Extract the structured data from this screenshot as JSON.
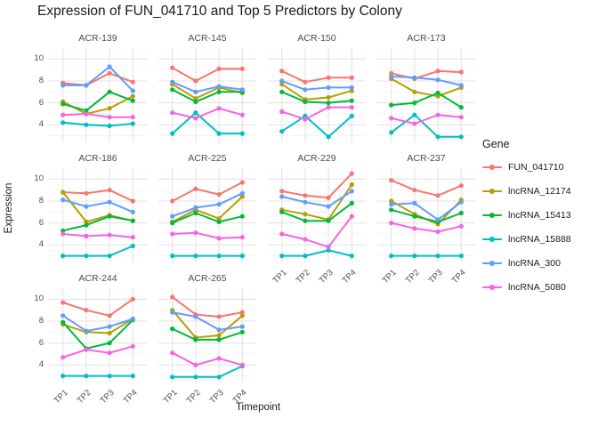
{
  "title": "Expression of FUN_041710 and Top 5 Predictors by Colony",
  "chart_data": {
    "type": "line",
    "title": "Expression of FUN_041710 and Top 5 Predictors by Colony",
    "xlabel": "Timepoint",
    "ylabel": "Expression",
    "x": [
      "TP1",
      "TP2",
      "TP3",
      "TP4"
    ],
    "yticks": [
      4,
      6,
      8,
      10
    ],
    "ylim": [
      2.4,
      11.0
    ],
    "grid": true,
    "legend_title": "Gene",
    "legend_position": "right",
    "series_names": [
      "FUN_041710",
      "lncRNA_12174",
      "lncRNA_15413",
      "lncRNA_15888",
      "lncRNA_300",
      "lncRNA_5080"
    ],
    "series_colors": {
      "FUN_041710": "#F8766D",
      "lncRNA_12174": "#B79F00",
      "lncRNA_15413": "#00BA38",
      "lncRNA_15888": "#00BFC4",
      "lncRNA_300": "#619CFF",
      "lncRNA_5080": "#F564E3"
    },
    "facets": [
      {
        "name": "ACR-139",
        "x_axis": false,
        "series": {
          "FUN_041710": [
            7.8,
            7.6,
            8.7,
            7.9
          ],
          "lncRNA_12174": [
            6.1,
            5.0,
            5.5,
            6.6
          ],
          "lncRNA_15413": [
            5.9,
            5.3,
            7.0,
            6.2
          ],
          "lncRNA_15888": [
            4.2,
            4.0,
            3.9,
            4.1
          ],
          "lncRNA_300": [
            7.6,
            7.6,
            9.3,
            7.1
          ],
          "lncRNA_5080": [
            4.9,
            5.0,
            4.7,
            4.7
          ]
        }
      },
      {
        "name": "ACR-145",
        "x_axis": false,
        "series": {
          "FUN_041710": [
            9.2,
            8.0,
            9.1,
            9.1
          ],
          "lncRNA_12174": [
            7.7,
            6.4,
            7.4,
            6.9
          ],
          "lncRNA_15413": [
            7.2,
            6.1,
            7.0,
            7.0
          ],
          "lncRNA_15888": [
            3.2,
            5.1,
            3.2,
            3.2
          ],
          "lncRNA_300": [
            7.9,
            7.0,
            7.5,
            7.2
          ],
          "lncRNA_5080": [
            5.1,
            4.6,
            5.5,
            4.9
          ]
        }
      },
      {
        "name": "ACR-150",
        "x_axis": false,
        "series": {
          "FUN_041710": [
            8.9,
            7.9,
            8.3,
            8.3
          ],
          "lncRNA_12174": [
            7.7,
            6.3,
            6.5,
            7.1
          ],
          "lncRNA_15413": [
            7.0,
            6.1,
            6.0,
            6.2
          ],
          "lncRNA_15888": [
            3.4,
            4.8,
            2.9,
            4.8
          ],
          "lncRNA_300": [
            8.0,
            7.2,
            7.4,
            7.4
          ],
          "lncRNA_5080": [
            5.2,
            4.5,
            5.6,
            5.6
          ]
        }
      },
      {
        "name": "ACR-173",
        "x_axis": false,
        "series": {
          "FUN_041710": [
            8.7,
            8.2,
            8.9,
            8.8
          ],
          "lncRNA_12174": [
            8.2,
            7.0,
            6.6,
            7.4
          ],
          "lncRNA_15413": [
            5.8,
            6.0,
            6.9,
            5.6
          ],
          "lncRNA_15888": [
            3.3,
            4.9,
            2.9,
            2.9
          ],
          "lncRNA_300": [
            8.4,
            8.3,
            8.1,
            7.6
          ],
          "lncRNA_5080": [
            4.6,
            4.1,
            4.9,
            4.7
          ]
        }
      },
      {
        "name": "ACR-186",
        "x_axis": false,
        "series": {
          "FUN_041710": [
            8.8,
            8.7,
            9.0,
            8.0
          ],
          "lncRNA_12174": [
            8.8,
            6.1,
            6.7,
            6.2
          ],
          "lncRNA_15413": [
            5.3,
            5.8,
            6.6,
            6.2
          ],
          "lncRNA_15888": [
            3.0,
            3.0,
            3.0,
            3.9
          ],
          "lncRNA_300": [
            8.1,
            7.5,
            7.9,
            7.0
          ],
          "lncRNA_5080": [
            5.0,
            4.8,
            4.9,
            4.7
          ]
        }
      },
      {
        "name": "ACR-225",
        "x_axis": false,
        "series": {
          "FUN_041710": [
            8.0,
            9.1,
            8.6,
            9.7
          ],
          "lncRNA_12174": [
            6.1,
            7.2,
            6.4,
            8.4
          ],
          "lncRNA_15413": [
            6.0,
            6.9,
            6.1,
            6.6
          ],
          "lncRNA_15888": [
            3.0,
            3.0,
            3.0,
            3.0
          ],
          "lncRNA_300": [
            6.6,
            7.4,
            7.7,
            8.7
          ],
          "lncRNA_5080": [
            5.0,
            5.1,
            4.6,
            4.7
          ]
        }
      },
      {
        "name": "ACR-229",
        "x_axis": true,
        "series": {
          "FUN_041710": [
            8.9,
            8.5,
            8.3,
            10.5
          ],
          "lncRNA_12174": [
            7.2,
            6.8,
            6.3,
            9.5
          ],
          "lncRNA_15413": [
            7.0,
            6.2,
            6.2,
            7.8
          ],
          "lncRNA_15888": [
            3.0,
            3.0,
            3.5,
            3.0
          ],
          "lncRNA_300": [
            8.4,
            7.9,
            7.5,
            8.9
          ],
          "lncRNA_5080": [
            5.0,
            4.5,
            3.8,
            6.6
          ]
        }
      },
      {
        "name": "ACR-237",
        "x_axis": true,
        "series": {
          "FUN_041710": [
            9.9,
            9.0,
            8.5,
            9.4
          ],
          "lncRNA_12174": [
            8.0,
            6.8,
            5.9,
            8.1
          ],
          "lncRNA_15413": [
            7.2,
            6.6,
            6.1,
            6.9
          ],
          "lncRNA_15888": [
            3.0,
            3.0,
            3.0,
            3.0
          ],
          "lncRNA_300": [
            7.7,
            7.8,
            6.3,
            7.9
          ],
          "lncRNA_5080": [
            6.0,
            5.5,
            5.2,
            5.7
          ]
        }
      },
      {
        "name": "ACR-244",
        "x_axis": true,
        "series": {
          "FUN_041710": [
            9.7,
            9.0,
            8.5,
            10.0
          ],
          "lncRNA_12174": [
            7.7,
            7.0,
            6.9,
            8.2
          ],
          "lncRNA_15413": [
            7.9,
            5.5,
            6.0,
            8.1
          ],
          "lncRNA_15888": [
            3.0,
            3.0,
            3.0,
            3.0
          ],
          "lncRNA_300": [
            8.5,
            7.1,
            7.5,
            8.2
          ],
          "lncRNA_5080": [
            4.7,
            5.4,
            5.1,
            5.7
          ]
        }
      },
      {
        "name": "ACR-265",
        "x_axis": true,
        "series": {
          "FUN_041710": [
            10.2,
            8.6,
            8.4,
            8.8
          ],
          "lncRNA_12174": [
            9.0,
            6.5,
            6.7,
            8.5
          ],
          "lncRNA_15413": [
            7.3,
            6.3,
            6.3,
            7.0
          ],
          "lncRNA_15888": [
            2.9,
            2.9,
            2.9,
            3.9
          ],
          "lncRNA_300": [
            8.8,
            8.4,
            7.2,
            7.5
          ],
          "lncRNA_5080": [
            5.1,
            4.0,
            4.6,
            4.0
          ]
        }
      }
    ],
    "grid_major_color": "#e3e3e3",
    "grid_minor_color": "#f0f0f0"
  }
}
